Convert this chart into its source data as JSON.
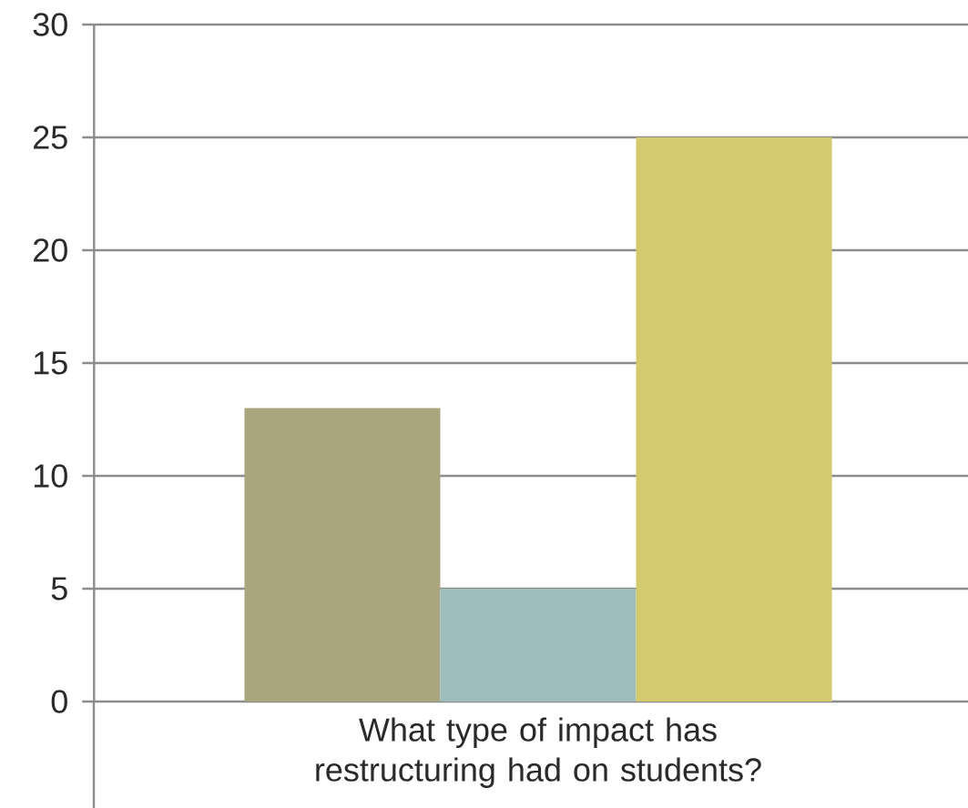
{
  "chart_data": {
    "type": "bar",
    "categories": [
      "What type of impact has restructuring had on students?"
    ],
    "series": [
      {
        "color": "#a9a67e",
        "values": [
          13
        ]
      },
      {
        "color": "#9ebdbd",
        "values": [
          5
        ]
      },
      {
        "color": "#d2ca6c",
        "values": [
          25
        ]
      }
    ],
    "ylim": [
      0,
      30
    ],
    "yticks": [
      0,
      5,
      10,
      15,
      20,
      25,
      30
    ],
    "grid": "y"
  }
}
